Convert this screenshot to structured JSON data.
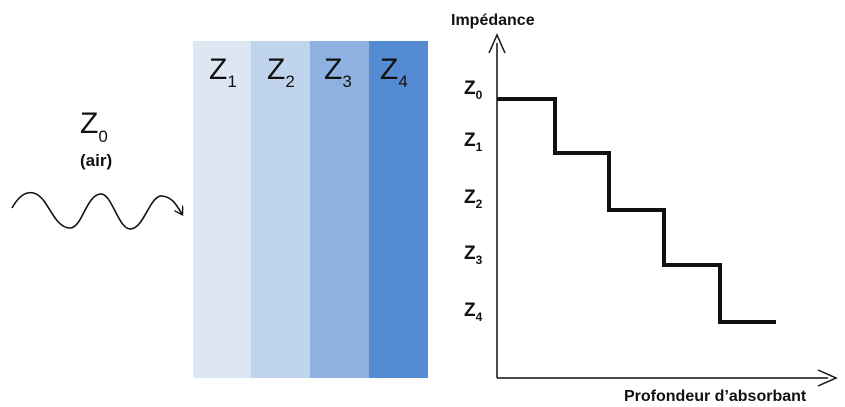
{
  "medium": {
    "symbol": "Z",
    "index": "0",
    "note": "(air)"
  },
  "layers": [
    {
      "symbol": "Z",
      "index": "1",
      "color": "#DDE7F4"
    },
    {
      "symbol": "Z",
      "index": "2",
      "color": "#C1D4EE"
    },
    {
      "symbol": "Z",
      "index": "3",
      "color": "#8EB1E2"
    },
    {
      "symbol": "Z",
      "index": "4",
      "color": "#558BD3"
    }
  ],
  "graph": {
    "y_axis_title": "Impédance",
    "x_axis_title": "Profondeur d’absorbant",
    "levels": [
      {
        "symbol": "Z",
        "index": "0"
      },
      {
        "symbol": "Z",
        "index": "1"
      },
      {
        "symbol": "Z",
        "index": "2"
      },
      {
        "symbol": "Z",
        "index": "3"
      },
      {
        "symbol": "Z",
        "index": "4"
      }
    ]
  }
}
